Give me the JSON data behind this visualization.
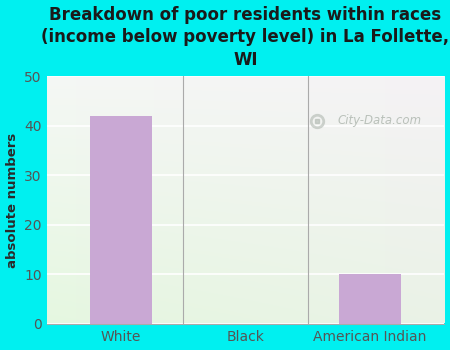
{
  "title": "Breakdown of poor residents within races\n(income below poverty level) in La Follette,\nWI",
  "categories": [
    "White",
    "Black",
    "American Indian"
  ],
  "values": [
    42,
    0,
    10
  ],
  "bar_color": "#c9a8d4",
  "ylabel": "absolute numbers",
  "ylim": [
    0,
    50
  ],
  "yticks": [
    0,
    10,
    20,
    30,
    40,
    50
  ],
  "background_color": "#00f0f0",
  "plot_bg_color": "#eef5ec",
  "title_color": "#1a1a1a",
  "title_fontsize": 12,
  "axis_label_color": "#2a2a2a",
  "tick_color": "#555555",
  "watermark_text": "City-Data.com",
  "grid_color": "#d8e8d0"
}
